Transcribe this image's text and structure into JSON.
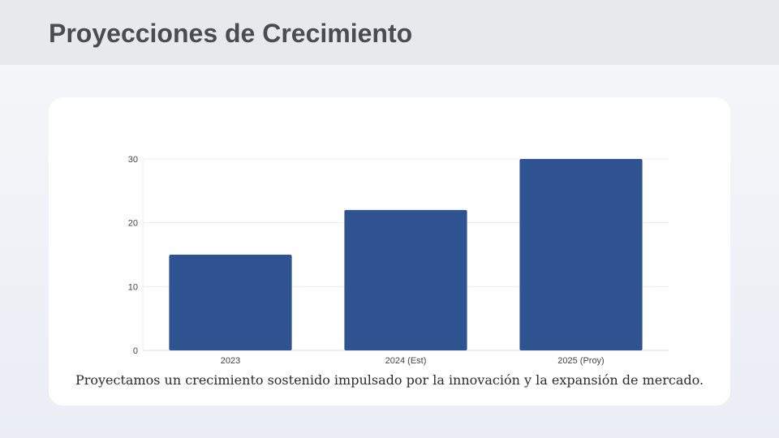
{
  "header": {
    "title": "Proyecciones de Crecimiento"
  },
  "chart_data": {
    "type": "bar",
    "categories": [
      "2023",
      "2024 (Est)",
      "2025 (Proy)"
    ],
    "values": [
      15,
      22,
      30
    ],
    "yticks": [
      0,
      10,
      20,
      30
    ],
    "ylim": [
      0,
      30
    ],
    "grid": true,
    "bar_color": "#2f5291",
    "title": "",
    "xlabel": "",
    "ylabel": ""
  },
  "caption": "Proyectamos un crecimiento sostenido impulsado por la innovación y la expansión de mercado."
}
